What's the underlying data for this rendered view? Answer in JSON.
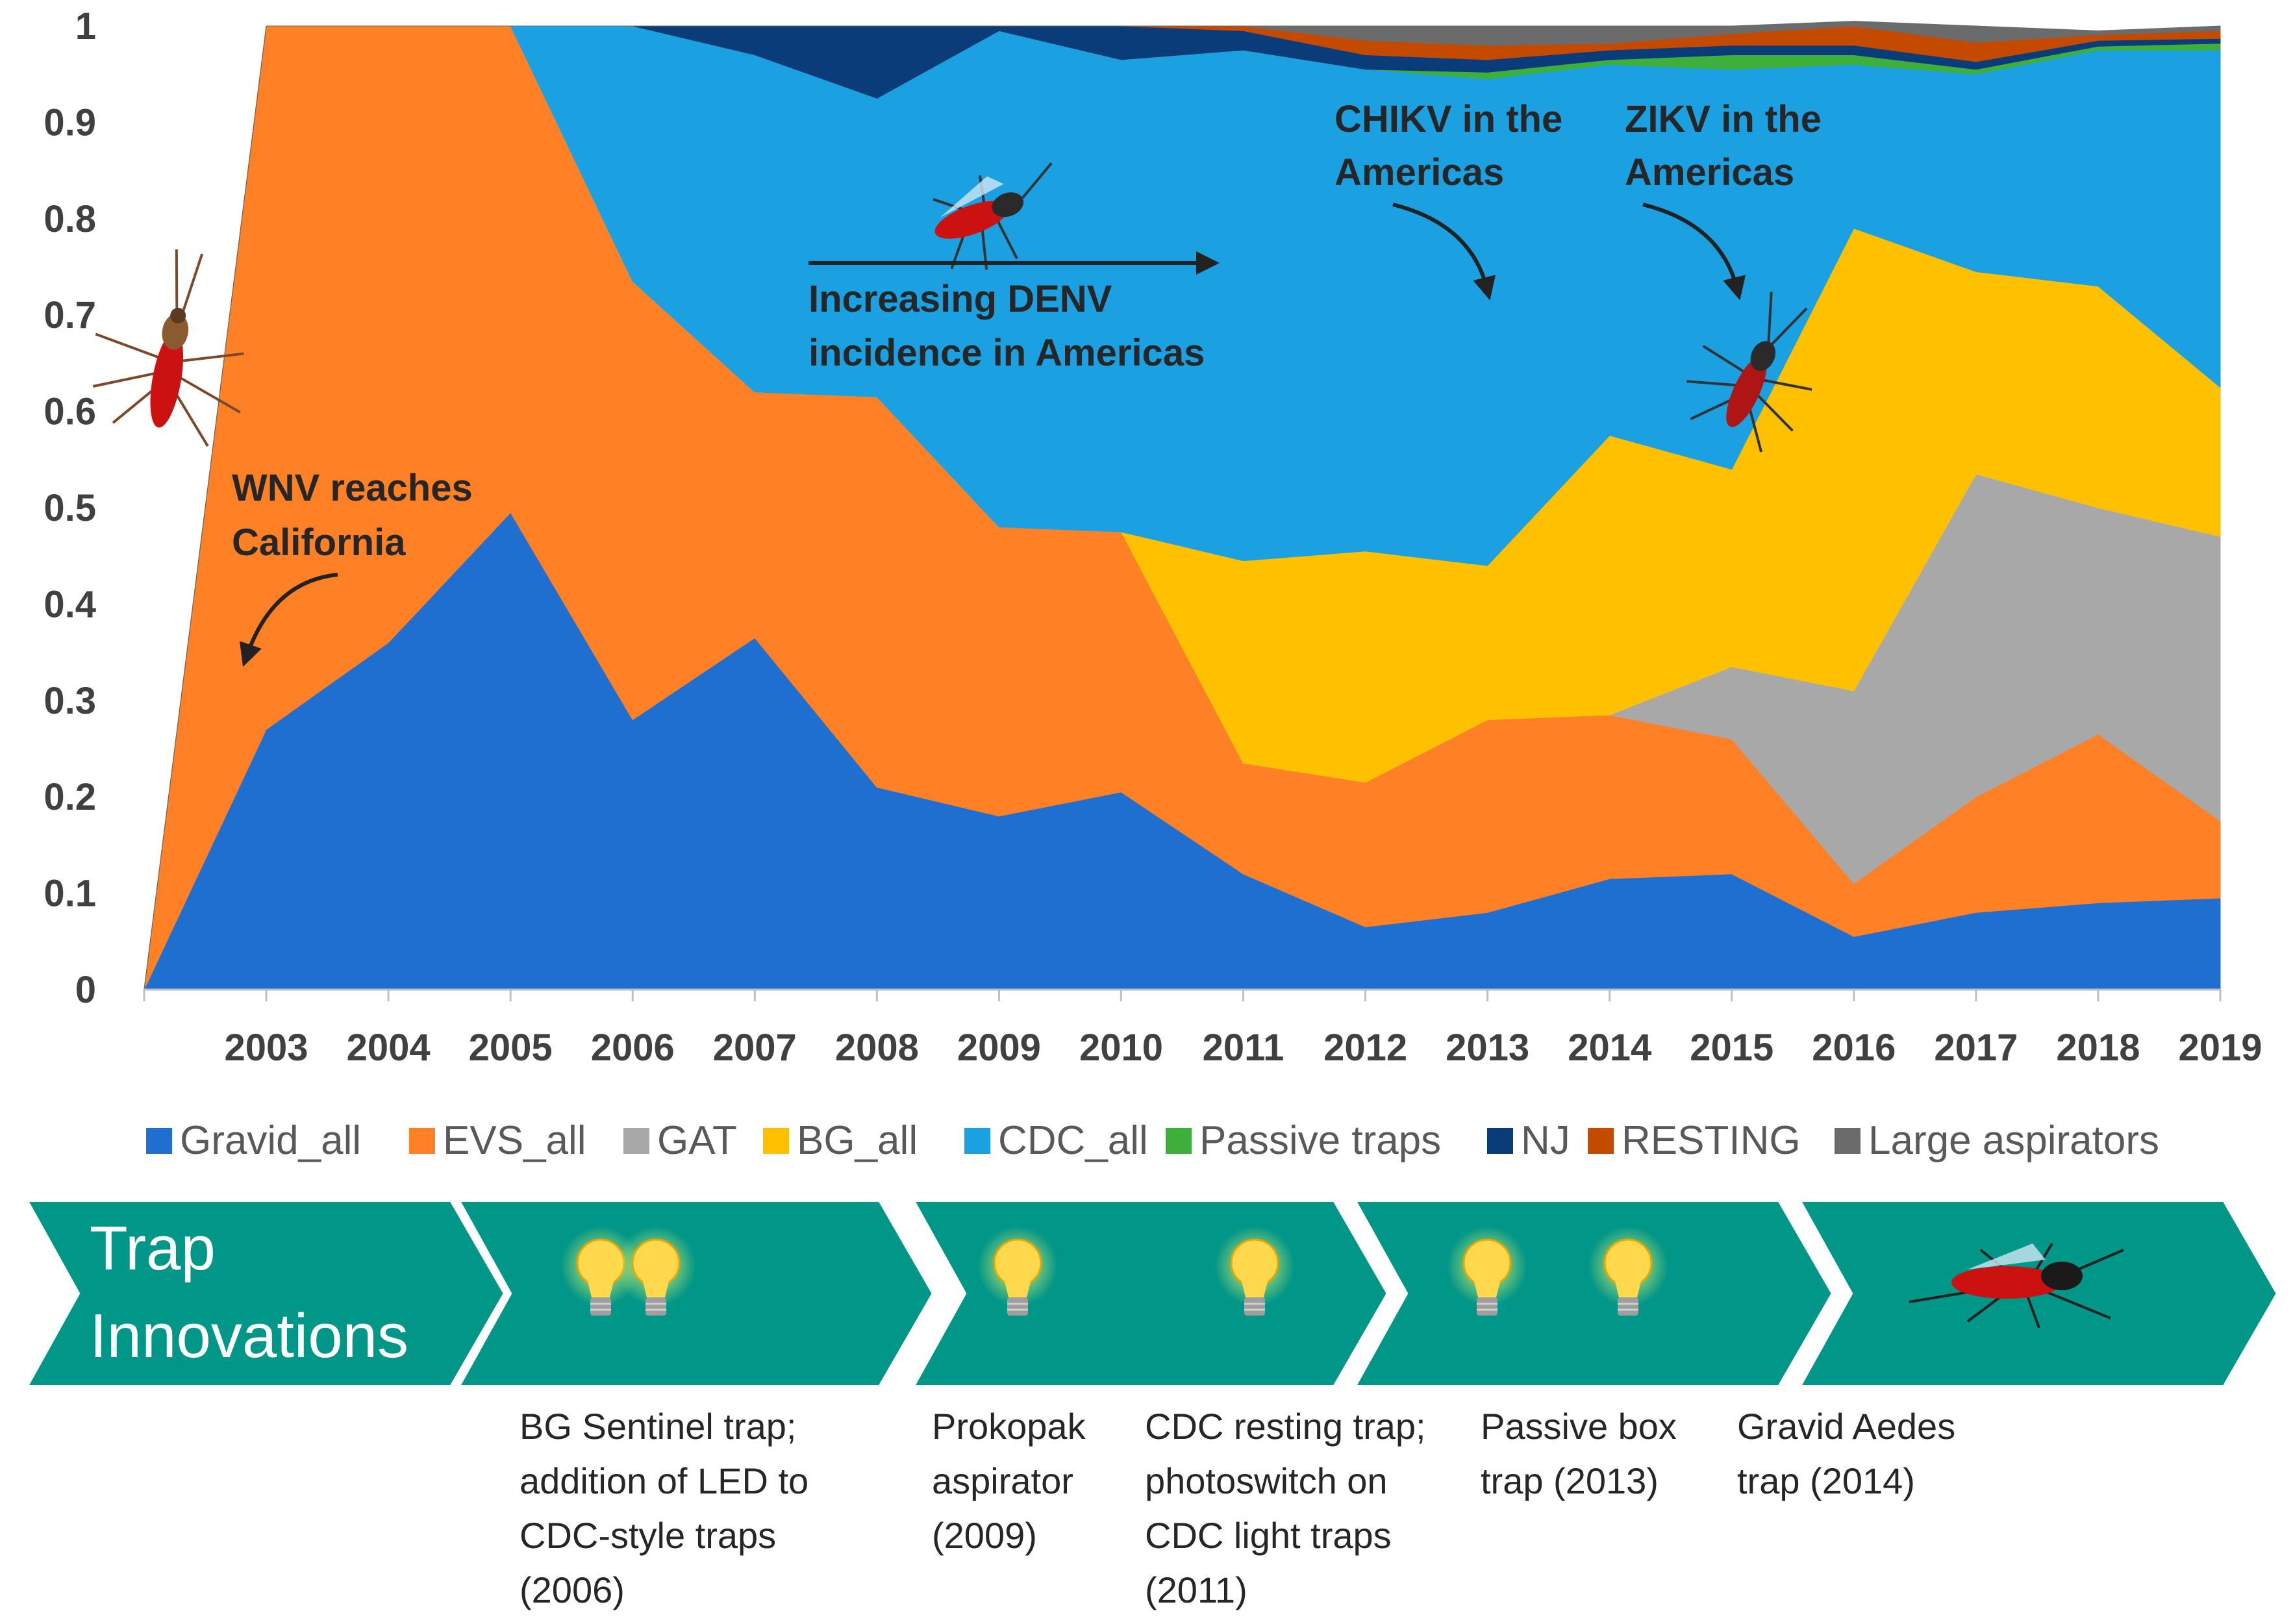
{
  "chart_data": {
    "type": "area",
    "stacked": true,
    "normalized": true,
    "x": [
      2002,
      2003,
      2004,
      2005,
      2006,
      2007,
      2008,
      2009,
      2010,
      2011,
      2012,
      2013,
      2014,
      2015,
      2016,
      2017,
      2018,
      2019
    ],
    "x_tick_labels": [
      "2003",
      "2004",
      "2005",
      "2006",
      "2007",
      "2008",
      "2009",
      "2010",
      "2011",
      "2012",
      "2013",
      "2014",
      "2015",
      "2016",
      "2017",
      "2018",
      "2019"
    ],
    "y_tick_labels": [
      "0",
      "0.1",
      "0.2",
      "0.3",
      "0.4",
      "0.5",
      "0.6",
      "0.7",
      "0.8",
      "0.9",
      "1"
    ],
    "ylim": [
      0,
      1
    ],
    "legend_position": "bottom",
    "series": [
      {
        "name": "Gravid_all",
        "color": "#1F6FD0",
        "values": [
          0,
          0.27,
          0.36,
          0.495,
          0.28,
          0.365,
          0.21,
          0.18,
          0.205,
          0.12,
          0.065,
          0.08,
          0.115,
          0.12,
          0.055,
          0.08,
          0.09,
          0.095
        ]
      },
      {
        "name": "EVS_all",
        "color": "#FF8025",
        "values": [
          0,
          0.73,
          0.64,
          0.505,
          0.455,
          0.255,
          0.405,
          0.3,
          0.27,
          0.115,
          0.15,
          0.2,
          0.17,
          0.14,
          0.055,
          0.12,
          0.175,
          0.08
        ]
      },
      {
        "name": "GAT",
        "color": "#A8A8A8",
        "values": [
          0,
          0,
          0,
          0,
          0,
          0,
          0,
          0,
          0,
          0,
          0,
          0,
          0,
          0.075,
          0.2,
          0.335,
          0.235,
          0.295
        ]
      },
      {
        "name": "BG_all",
        "color": "#FFC000",
        "values": [
          0,
          0,
          0,
          0,
          0,
          0,
          0,
          0,
          0,
          0.21,
          0.24,
          0.16,
          0.29,
          0.205,
          0.48,
          0.21,
          0.23,
          0.155
        ]
      },
      {
        "name": "CDC_all",
        "color": "#1BA1E2",
        "values": [
          0,
          0,
          0,
          0,
          0.265,
          0.35,
          0.31,
          0.515,
          0.49,
          0.53,
          0.5,
          0.505,
          0.385,
          0.415,
          0.17,
          0.205,
          0.245,
          0.35
        ]
      },
      {
        "name": "Passive traps",
        "color": "#3EAF3A",
        "values": [
          0,
          0,
          0,
          0,
          0,
          0,
          0,
          0,
          0,
          0,
          0,
          0.007,
          0.005,
          0.015,
          0.01,
          0.005,
          0.004,
          0.007
        ]
      },
      {
        "name": "NJ",
        "color": "#0B3C7A",
        "values": [
          0,
          0,
          0,
          0,
          0,
          0.03,
          0.075,
          0.005,
          0.035,
          0.02,
          0.015,
          0.013,
          0.01,
          0.01,
          0.01,
          0.008,
          0.006,
          0.005
        ]
      },
      {
        "name": "RESTING",
        "color": "#C44A00",
        "values": [
          0,
          0,
          0,
          0,
          0,
          0,
          0,
          0,
          0,
          0.005,
          0.015,
          0.015,
          0.007,
          0.012,
          0.02,
          0.02,
          0.006,
          0.008
        ]
      },
      {
        "name": "Large aspirators",
        "color": "#6B6B6B",
        "values": [
          0,
          0,
          0,
          0,
          0,
          0,
          0,
          0,
          0,
          0,
          0.015,
          0.02,
          0.018,
          0.008,
          0.005,
          0.017,
          0.004,
          0.005
        ]
      }
    ],
    "annotations": [
      {
        "id": "wnv",
        "lines": [
          "WNV reaches",
          "California"
        ]
      },
      {
        "id": "denv",
        "lines": [
          "Increasing DENV",
          "incidence in Americas"
        ]
      },
      {
        "id": "chikv",
        "lines": [
          "CHIKV in the",
          "Americas"
        ]
      },
      {
        "id": "zikv",
        "lines": [
          "ZIKV in the",
          "Americas"
        ]
      }
    ]
  },
  "timeline": {
    "title_lines": [
      "Trap",
      "Innovations"
    ],
    "color": "#009688",
    "captions": [
      {
        "lines": [
          "BG Sentinel trap;",
          "addition of LED to",
          "CDC-style traps",
          "(2006)"
        ]
      },
      {
        "lines": [
          "Prokopak",
          "aspirator",
          "(2009)"
        ]
      },
      {
        "lines": [
          "CDC resting trap;",
          "photoswitch on",
          "CDC light traps",
          "(2011)"
        ]
      },
      {
        "lines": [
          "Passive box",
          "trap (2013)"
        ]
      },
      {
        "lines": [
          "Gravid Aedes",
          "trap (2014)"
        ]
      }
    ]
  }
}
